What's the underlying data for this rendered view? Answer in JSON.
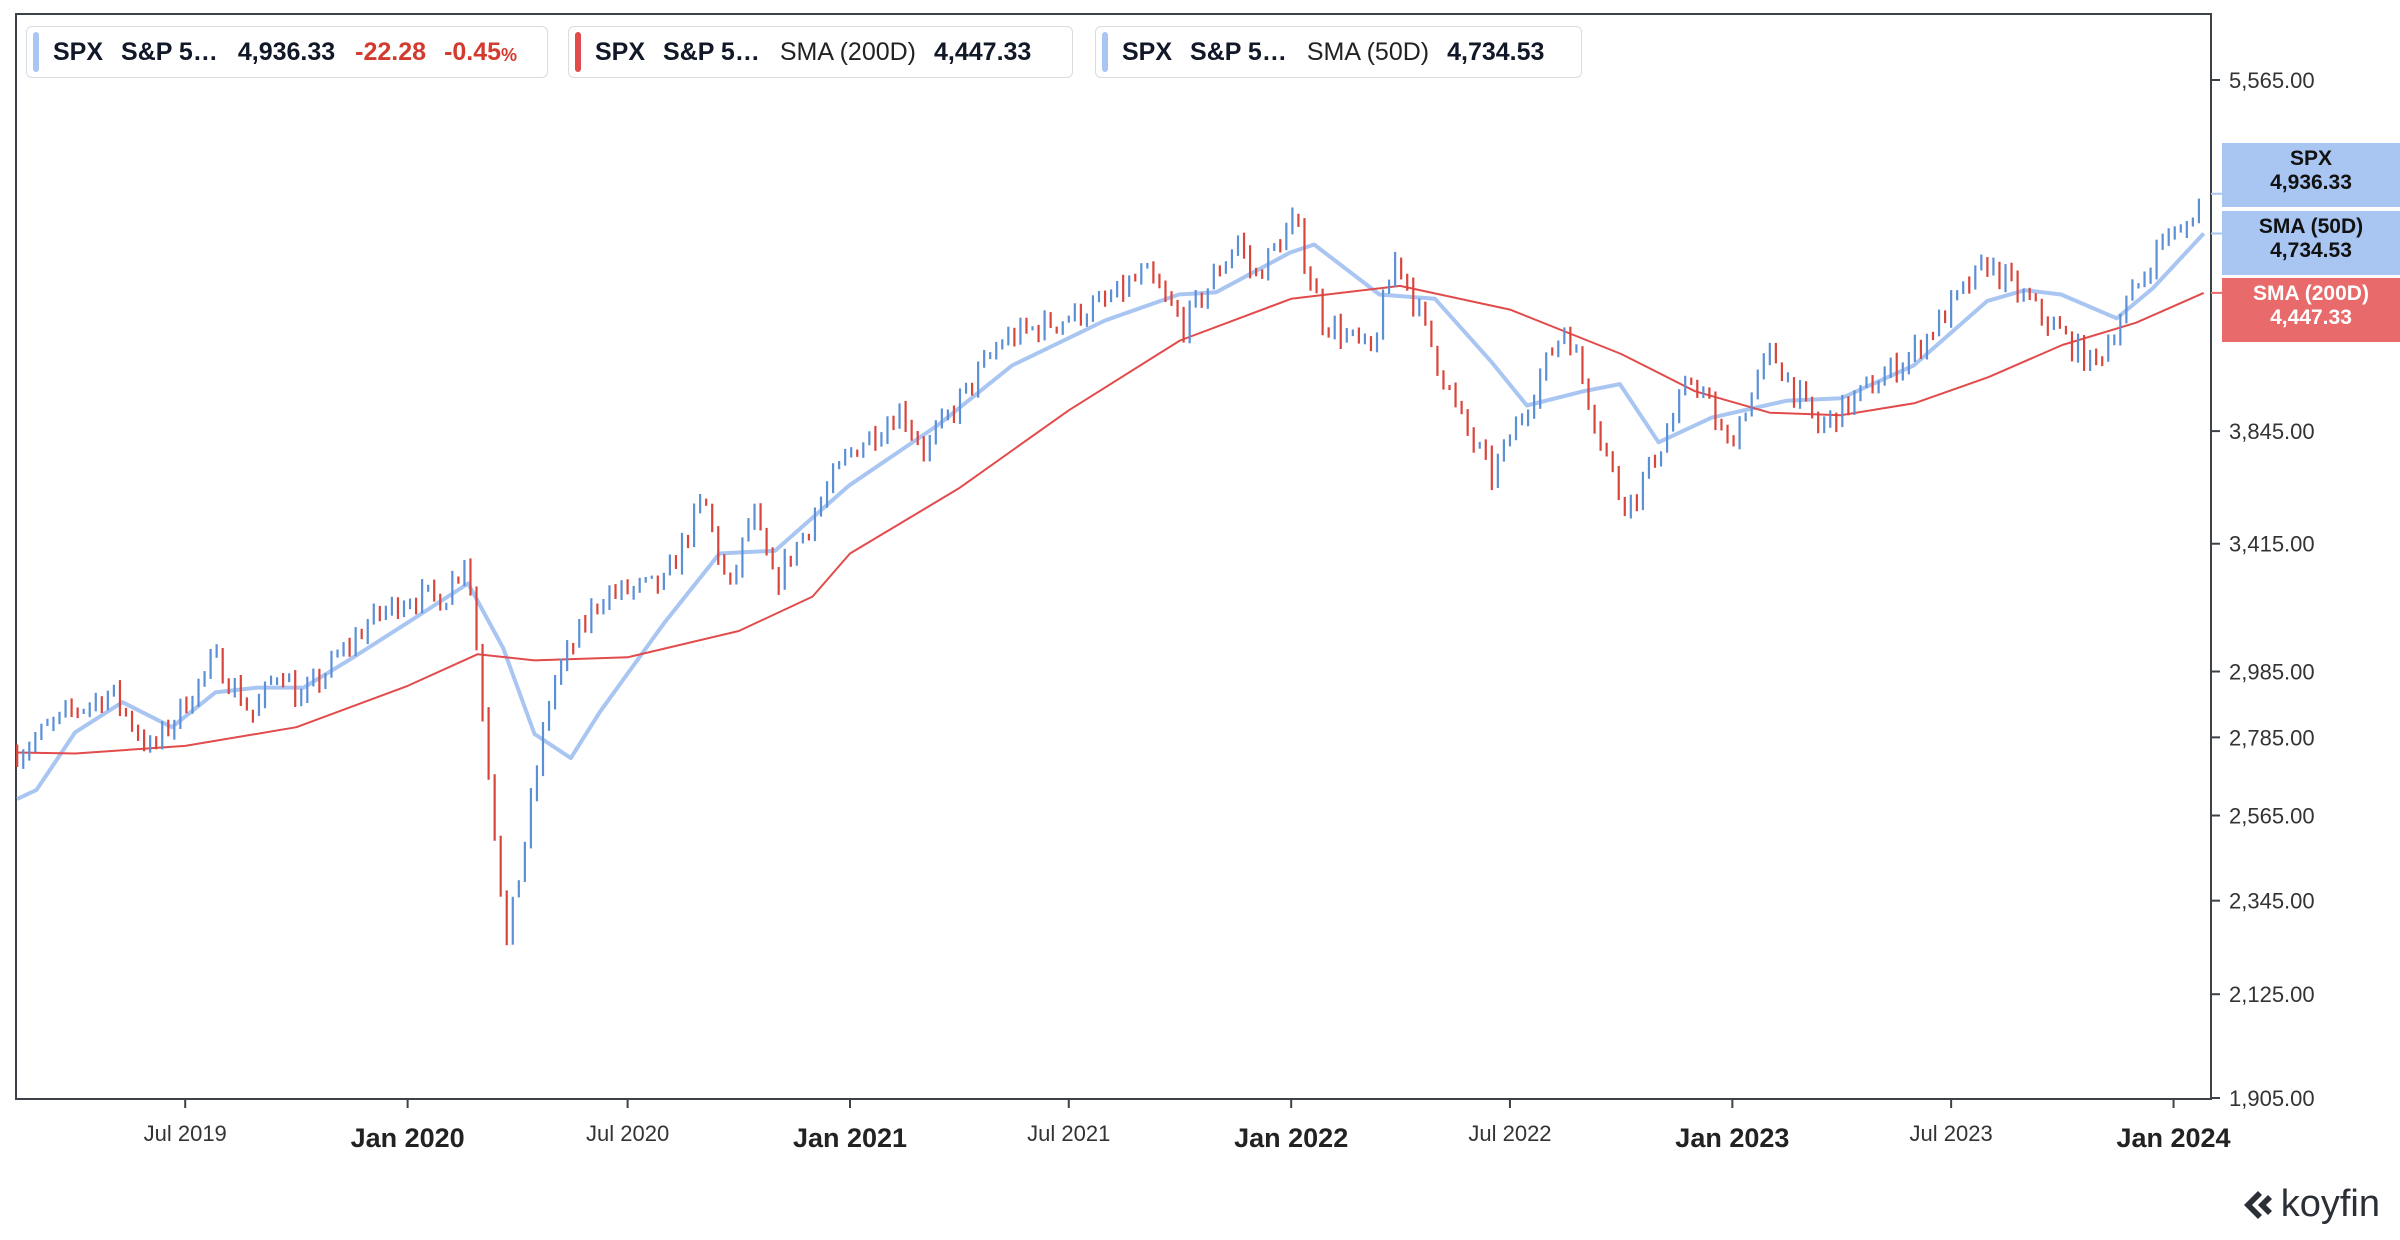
{
  "legend": [
    {
      "symbol": "SPX",
      "name": "S&P 5…",
      "indicator": "",
      "value": "4,936.33",
      "change": "-22.28",
      "change_pct": "-0.45",
      "pct_sign": "%",
      "color": "#a9c5f2"
    },
    {
      "symbol": "SPX",
      "name": "S&P 5…",
      "indicator": "SMA (200D)",
      "value": "4,447.33",
      "color": "#e24b4b"
    },
    {
      "symbol": "SPX",
      "name": "S&P 5…",
      "indicator": "SMA (50D)",
      "value": "4,734.53",
      "color": "#a9c5f2"
    }
  ],
  "tags": [
    {
      "title": "SPX",
      "value": "4,936.33",
      "color": "#a9c5f2"
    },
    {
      "title": "SMA (50D)",
      "value": "4,734.53",
      "color": "#a9c5f2"
    },
    {
      "title": "SMA (200D)",
      "value": "4,447.33",
      "color": "#e96a6a"
    }
  ],
  "brand": {
    "name": "koyfin"
  },
  "chart_data": {
    "type": "line",
    "y_scale": "log",
    "ylim": [
      1905,
      5565
    ],
    "yticks": [
      "5,565.00",
      "3,845.00",
      "3,415.00",
      "2,985.00",
      "2,785.00",
      "2,565.00",
      "2,345.00",
      "2,125.00",
      "1,905.00"
    ],
    "xlim": [
      "2019-02-11",
      "2024-02-01"
    ],
    "xticks": [
      {
        "label": "Jul 2019",
        "date": "2019-07-01",
        "major": false
      },
      {
        "label": "Jan 2020",
        "date": "2020-01-01",
        "major": true
      },
      {
        "label": "Jul 2020",
        "date": "2020-07-01",
        "major": false
      },
      {
        "label": "Jan 2021",
        "date": "2021-01-01",
        "major": true
      },
      {
        "label": "Jul 2021",
        "date": "2021-07-01",
        "major": false
      },
      {
        "label": "Jan 2022",
        "date": "2022-01-01",
        "major": true
      },
      {
        "label": "Jul 2022",
        "date": "2022-07-01",
        "major": false
      },
      {
        "label": "Jan 2023",
        "date": "2023-01-01",
        "major": true
      },
      {
        "label": "Jul 2023",
        "date": "2023-07-01",
        "major": false
      },
      {
        "label": "Jan 2024",
        "date": "2024-01-01",
        "major": true
      }
    ],
    "series": [
      {
        "name": "SPX",
        "style": "candles",
        "up_color": "#5b8fd6",
        "down_color": "#d9443b",
        "points": [
          [
            "2019-02-12",
            2744
          ],
          [
            "2019-04-01",
            2868
          ],
          [
            "2019-05-01",
            2920
          ],
          [
            "2019-06-03",
            2744
          ],
          [
            "2019-07-26",
            3025
          ],
          [
            "2019-08-26",
            2850
          ],
          [
            "2019-09-18",
            3006
          ],
          [
            "2019-10-03",
            2887
          ],
          [
            "2019-11-29",
            3141
          ],
          [
            "2019-12-31",
            3231
          ],
          [
            "2020-01-31",
            3226
          ],
          [
            "2020-02-19",
            3386
          ],
          [
            "2020-03-23",
            2237
          ],
          [
            "2020-04-29",
            2940
          ],
          [
            "2020-06-08",
            3232
          ],
          [
            "2020-07-31",
            3271
          ],
          [
            "2020-09-02",
            3580
          ],
          [
            "2020-09-23",
            3237
          ],
          [
            "2020-10-12",
            3534
          ],
          [
            "2020-10-30",
            3270
          ],
          [
            "2020-12-31",
            3756
          ],
          [
            "2021-02-12",
            3934
          ],
          [
            "2021-03-04",
            3768
          ],
          [
            "2021-05-07",
            4232
          ],
          [
            "2021-07-30",
            4395
          ],
          [
            "2021-09-02",
            4537
          ],
          [
            "2021-10-04",
            4300
          ],
          [
            "2021-11-18",
            4704
          ],
          [
            "2021-12-01",
            4513
          ],
          [
            "2022-01-03",
            4796
          ],
          [
            "2022-01-27",
            4326
          ],
          [
            "2022-03-08",
            4170
          ],
          [
            "2022-03-29",
            4631
          ],
          [
            "2022-05-20",
            3901
          ],
          [
            "2022-06-16",
            3667
          ],
          [
            "2022-08-16",
            4305
          ],
          [
            "2022-09-30",
            3586
          ],
          [
            "2022-10-12",
            3577
          ],
          [
            "2022-11-30",
            4080
          ],
          [
            "2022-12-28",
            3783
          ],
          [
            "2023-02-02",
            4179
          ],
          [
            "2023-03-13",
            3855
          ],
          [
            "2023-05-31",
            4180
          ],
          [
            "2023-07-31",
            4589
          ],
          [
            "2023-10-27",
            4117
          ],
          [
            "2023-12-29",
            4770
          ],
          [
            "2024-01-04",
            4688
          ],
          [
            "2024-01-26",
            4936
          ]
        ]
      },
      {
        "name": "SMA (50D)",
        "style": "line",
        "color": "#a9c5f2",
        "points": [
          [
            "2019-02-12",
            2610
          ],
          [
            "2019-02-28",
            2635
          ],
          [
            "2019-04-01",
            2800
          ],
          [
            "2019-05-10",
            2890
          ],
          [
            "2019-06-20",
            2815
          ],
          [
            "2019-07-26",
            2920
          ],
          [
            "2019-08-30",
            2935
          ],
          [
            "2019-10-07",
            2935
          ],
          [
            "2019-11-15",
            3025
          ],
          [
            "2019-12-31",
            3140
          ],
          [
            "2020-02-20",
            3275
          ],
          [
            "2020-03-20",
            3060
          ],
          [
            "2020-04-15",
            2795
          ],
          [
            "2020-05-15",
            2725
          ],
          [
            "2020-06-08",
            2860
          ],
          [
            "2020-07-31",
            3140
          ],
          [
            "2020-09-15",
            3380
          ],
          [
            "2020-10-31",
            3390
          ],
          [
            "2020-12-31",
            3630
          ],
          [
            "2021-03-15",
            3870
          ],
          [
            "2021-05-15",
            4120
          ],
          [
            "2021-07-31",
            4320
          ],
          [
            "2021-09-30",
            4440
          ],
          [
            "2021-10-31",
            4450
          ],
          [
            "2021-12-31",
            4640
          ],
          [
            "2022-01-20",
            4680
          ],
          [
            "2022-03-15",
            4440
          ],
          [
            "2022-04-30",
            4420
          ],
          [
            "2022-06-15",
            4140
          ],
          [
            "2022-07-15",
            3950
          ],
          [
            "2022-08-31",
            4010
          ],
          [
            "2022-09-30",
            4040
          ],
          [
            "2022-11-01",
            3800
          ],
          [
            "2022-12-15",
            3900
          ],
          [
            "2023-02-15",
            3970
          ],
          [
            "2023-04-01",
            3980
          ],
          [
            "2023-05-31",
            4120
          ],
          [
            "2023-07-31",
            4410
          ],
          [
            "2023-08-31",
            4460
          ],
          [
            "2023-09-30",
            4440
          ],
          [
            "2023-11-15",
            4330
          ],
          [
            "2023-12-15",
            4470
          ],
          [
            "2024-01-26",
            4734.53
          ]
        ]
      },
      {
        "name": "SMA (200D)",
        "style": "line",
        "color": "#e24b4b",
        "points": [
          [
            "2019-02-12",
            2741
          ],
          [
            "2019-04-01",
            2738
          ],
          [
            "2019-07-01",
            2760
          ],
          [
            "2019-10-01",
            2815
          ],
          [
            "2020-01-01",
            2940
          ],
          [
            "2020-02-28",
            3040
          ],
          [
            "2020-04-15",
            3020
          ],
          [
            "2020-07-01",
            3030
          ],
          [
            "2020-10-01",
            3115
          ],
          [
            "2020-12-01",
            3230
          ],
          [
            "2021-01-01",
            3380
          ],
          [
            "2021-04-01",
            3620
          ],
          [
            "2021-07-01",
            3930
          ],
          [
            "2021-10-01",
            4230
          ],
          [
            "2022-01-01",
            4420
          ],
          [
            "2022-04-01",
            4480
          ],
          [
            "2022-07-01",
            4370
          ],
          [
            "2022-10-01",
            4170
          ],
          [
            "2022-12-01",
            4010
          ],
          [
            "2023-02-01",
            3920
          ],
          [
            "2023-04-01",
            3910
          ],
          [
            "2023-06-01",
            3960
          ],
          [
            "2023-08-01",
            4070
          ],
          [
            "2023-10-01",
            4210
          ],
          [
            "2023-12-01",
            4310
          ],
          [
            "2024-01-26",
            4447.33
          ]
        ]
      }
    ]
  }
}
